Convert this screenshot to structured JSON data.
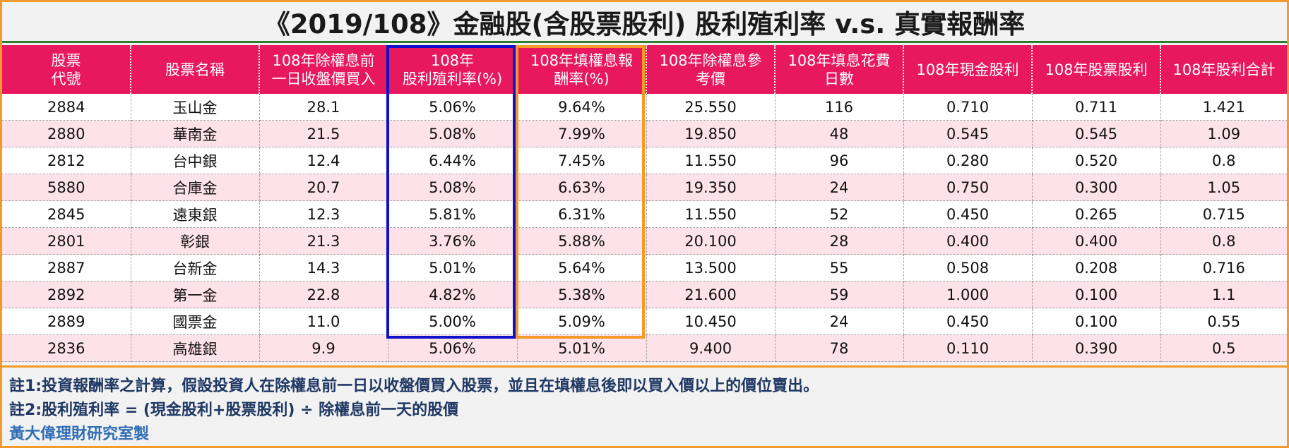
{
  "title": "《2019/108》金融股(含股票股利) 股利殖利率 v.s. 真實報酬率",
  "headers": [
    [
      "股票",
      "代號"
    ],
    [
      "股票名稱"
    ],
    [
      "108年除權息前",
      "一日收盤價買入"
    ],
    [
      "108年",
      "股利殖利率(%)"
    ],
    [
      "108年填權息報",
      "酬率(%)"
    ],
    [
      "108年除權息參",
      "考價"
    ],
    [
      "108年填息花費",
      "日數"
    ],
    [
      "108年現金股利"
    ],
    [
      "108年股票股利"
    ],
    [
      "108年股利合計"
    ]
  ],
  "rows": [
    [
      "2884",
      "玉山金",
      "28.1",
      "5.06%",
      "9.64%",
      "25.550",
      "116",
      "0.710",
      "0.711",
      "1.421"
    ],
    [
      "2880",
      "華南金",
      "21.5",
      "5.08%",
      "7.99%",
      "19.850",
      "48",
      "0.545",
      "0.545",
      "1.09"
    ],
    [
      "2812",
      "台中銀",
      "12.4",
      "6.44%",
      "7.45%",
      "11.550",
      "96",
      "0.280",
      "0.520",
      "0.8"
    ],
    [
      "5880",
      "合庫金",
      "20.7",
      "5.08%",
      "6.63%",
      "19.350",
      "24",
      "0.750",
      "0.300",
      "1.05"
    ],
    [
      "2845",
      "遠東銀",
      "12.3",
      "5.81%",
      "6.31%",
      "11.550",
      "52",
      "0.450",
      "0.265",
      "0.715"
    ],
    [
      "2801",
      "彰銀",
      "21.3",
      "3.76%",
      "5.88%",
      "20.100",
      "28",
      "0.400",
      "0.400",
      "0.8"
    ],
    [
      "2887",
      "台新金",
      "14.3",
      "5.01%",
      "5.64%",
      "13.500",
      "55",
      "0.508",
      "0.208",
      "0.716"
    ],
    [
      "2892",
      "第一金",
      "22.8",
      "4.82%",
      "5.38%",
      "21.600",
      "59",
      "1.000",
      "0.100",
      "1.1"
    ],
    [
      "2889",
      "國票金",
      "11.0",
      "5.00%",
      "5.09%",
      "10.450",
      "24",
      "0.450",
      "0.100",
      "0.55"
    ],
    [
      "2836",
      "高雄銀",
      "9.9",
      "5.06%",
      "5.01%",
      "9.400",
      "78",
      "0.110",
      "0.390",
      "0.5"
    ]
  ],
  "notes": [
    "註1:投資報酬率之計算，假設投資人在除權息前一日以收盤價買入股票，並且在填權息後即以買入價以上的價位賣出。",
    "註2:股利殖利率 = (現金股利+股票股利) ÷ 除權息前一天的股價"
  ],
  "author": "黃大偉理財研究室製",
  "colors": {
    "header_bg": "#e8185f",
    "row_alt_bg": "#fde2ea",
    "highlight_yield": "#1010c8",
    "highlight_return": "#f39a28"
  }
}
